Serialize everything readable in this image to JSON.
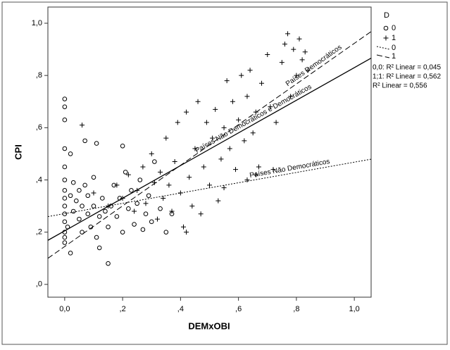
{
  "chart_data": {
    "type": "scatter",
    "x_label": "DEMxOBI",
    "y_label": "CPI",
    "xlim": [
      -0.058,
      1.058
    ],
    "ylim": [
      -0.049,
      1.062
    ],
    "xticks": [
      {
        "value": 0,
        "label": "0,0"
      },
      {
        "value": 0.2,
        "label": ",2"
      },
      {
        "value": 0.4,
        "label": ",4"
      },
      {
        "value": 0.6,
        "label": ",6"
      },
      {
        "value": 0.8,
        "label": ",8"
      },
      {
        "value": 1,
        "label": "1,0"
      }
    ],
    "yticks": [
      {
        "value": 0,
        "label": ",0"
      },
      {
        "value": 0.2,
        "label": ",2"
      },
      {
        "value": 0.4,
        "label": ",4"
      },
      {
        "value": 0.6,
        "label": ",6"
      },
      {
        "value": 0.8,
        "label": ",8"
      },
      {
        "value": 1,
        "label": "1,0"
      }
    ],
    "legend_title": "D",
    "series": [
      {
        "name": "0",
        "marker": "circle",
        "x": [
          0,
          0,
          0,
          0,
          0,
          0,
          0,
          0,
          0,
          0,
          0,
          0,
          0,
          0,
          0.01,
          0.02,
          0.02,
          0.03,
          0.03,
          0.04,
          0.05,
          0.05,
          0.06,
          0.06,
          0.07,
          0.07,
          0.08,
          0.08,
          0.09,
          0.1,
          0.1,
          0.11,
          0.11,
          0.12,
          0.12,
          0.13,
          0.14,
          0.15,
          0.15,
          0.16,
          0.17,
          0.18,
          0.19,
          0.2,
          0.2,
          0.21,
          0.22,
          0.23,
          0.24,
          0.25,
          0.26,
          0.27,
          0.28,
          0.29,
          0.3,
          0.31,
          0.33,
          0.35,
          0.37,
          0.02
        ],
        "values": [
          0.71,
          0.68,
          0.63,
          0.52,
          0.45,
          0.4,
          0.36,
          0.33,
          0.3,
          0.27,
          0.24,
          0.2,
          0.18,
          0.16,
          0.22,
          0.5,
          0.34,
          0.28,
          0.39,
          0.32,
          0.36,
          0.25,
          0.3,
          0.2,
          0.55,
          0.38,
          0.27,
          0.34,
          0.22,
          0.3,
          0.41,
          0.54,
          0.18,
          0.26,
          0.14,
          0.33,
          0.28,
          0.08,
          0.22,
          0.3,
          0.38,
          0.26,
          0.33,
          0.53,
          0.2,
          0.43,
          0.29,
          0.36,
          0.23,
          0.31,
          0.4,
          0.21,
          0.27,
          0.34,
          0.24,
          0.47,
          0.29,
          0.2,
          0.27,
          0.12
        ]
      },
      {
        "name": "1",
        "marker": "plus",
        "x": [
          0.06,
          0.1,
          0.15,
          0.18,
          0.2,
          0.22,
          0.24,
          0.25,
          0.27,
          0.28,
          0.3,
          0.31,
          0.32,
          0.33,
          0.34,
          0.35,
          0.36,
          0.37,
          0.38,
          0.39,
          0.4,
          0.41,
          0.42,
          0.43,
          0.44,
          0.45,
          0.46,
          0.47,
          0.48,
          0.49,
          0.5,
          0.51,
          0.52,
          0.53,
          0.54,
          0.55,
          0.56,
          0.57,
          0.58,
          0.59,
          0.6,
          0.61,
          0.62,
          0.63,
          0.64,
          0.65,
          0.66,
          0.67,
          0.68,
          0.7,
          0.71,
          0.72,
          0.73,
          0.75,
          0.76,
          0.77,
          0.78,
          0.79,
          0.8,
          0.81,
          0.82,
          0.83,
          0.84,
          0.55,
          0.42,
          0.63,
          0.66
        ],
        "values": [
          0.61,
          0.35,
          0.3,
          0.38,
          0.33,
          0.42,
          0.28,
          0.36,
          0.45,
          0.31,
          0.5,
          0.39,
          0.25,
          0.43,
          0.33,
          0.56,
          0.38,
          0.28,
          0.47,
          0.62,
          0.35,
          0.22,
          0.66,
          0.41,
          0.3,
          0.52,
          0.7,
          0.27,
          0.45,
          0.62,
          0.38,
          0.56,
          0.67,
          0.32,
          0.48,
          0.6,
          0.78,
          0.52,
          0.7,
          0.44,
          0.63,
          0.8,
          0.55,
          0.72,
          0.82,
          0.58,
          0.66,
          0.45,
          0.77,
          0.88,
          0.68,
          0.44,
          0.62,
          0.85,
          0.92,
          0.96,
          0.72,
          0.9,
          0.8,
          0.94,
          0.86,
          0.89,
          0.82,
          0.37,
          0.2,
          0.4,
          0.42
        ]
      }
    ],
    "fit_lines": [
      {
        "label": "Países Não Democráticos",
        "legend": "0",
        "r2_label": "0,0: R² Linear = 0,045",
        "style": "dotted",
        "intercept": 0.271,
        "slope": 0.197,
        "label_at": 0.78
      },
      {
        "label": "Países Democráticos",
        "legend": "1",
        "r2_label": "1;1: R² Linear = 0,562",
        "style": "dashed",
        "intercept": 0.145,
        "slope": 0.778,
        "label_at": 0.87
      },
      {
        "label": "Países Não Democráticos e Democráticos",
        "r2_label": "R² Linear = 0,556",
        "style": "solid",
        "intercept": 0.205,
        "slope": 0.625,
        "label_at": 0.66
      }
    ]
  }
}
